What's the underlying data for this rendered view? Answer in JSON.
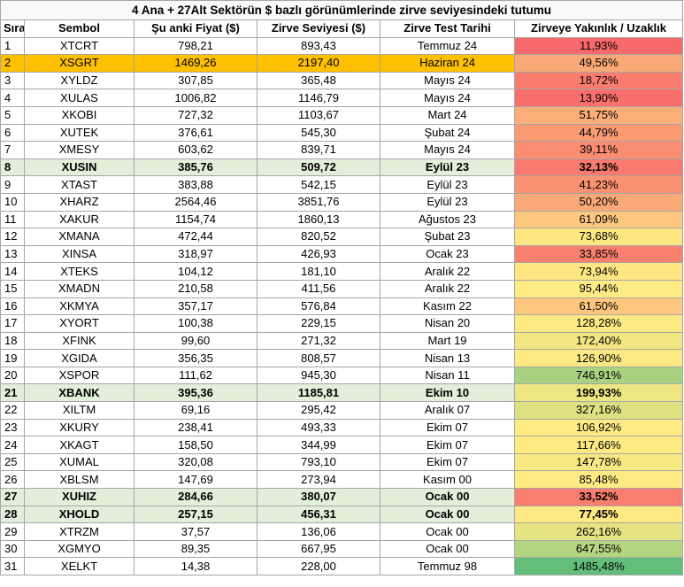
{
  "title": "4 Ana + 27Alt Sektörün $ bazlı görünümlerinde zirve seviyesindeki tutumu",
  "headers": [
    "Sıra",
    "Sembol",
    "Şu anki Fiyat ($)",
    "Zirve Seviyesi ($)",
    "Zirve Test Tarihi",
    "Zirveye Yakınlık /  Uzaklık"
  ],
  "rows": [
    {
      "idx": "1",
      "sym": "XTCRT",
      "price": "798,21",
      "peak": "893,43",
      "date": "Temmuz 24",
      "pct": "11,93%",
      "color": "#f8696b",
      "hl": ""
    },
    {
      "idx": "2",
      "sym": "XSGRT",
      "price": "1469,26",
      "peak": "2197,40",
      "date": "Haziran 24",
      "pct": "49,56%",
      "color": "#fba877",
      "hl": "orange"
    },
    {
      "idx": "3",
      "sym": "XYLDZ",
      "price": "307,85",
      "peak": "365,48",
      "date": "Mayıs 24",
      "pct": "18,72%",
      "color": "#f97c6e",
      "hl": ""
    },
    {
      "idx": "4",
      "sym": "XULAS",
      "price": "1006,82",
      "peak": "1146,79",
      "date": "Mayıs 24",
      "pct": "13,90%",
      "color": "#f86f6c",
      "hl": ""
    },
    {
      "idx": "5",
      "sym": "XKOBI",
      "price": "727,32",
      "peak": "1103,67",
      "date": "Mart 24",
      "pct": "51,75%",
      "color": "#fbae78",
      "hl": ""
    },
    {
      "idx": "6",
      "sym": "XUTEK",
      "price": "376,61",
      "peak": "545,30",
      "date": "Şubat 24",
      "pct": "44,79%",
      "color": "#fa9b74",
      "hl": ""
    },
    {
      "idx": "7",
      "sym": "XMESY",
      "price": "603,62",
      "peak": "839,71",
      "date": "Mayıs 24",
      "pct": "39,11%",
      "color": "#fa8c71",
      "hl": ""
    },
    {
      "idx": "8",
      "sym": "XUSIN",
      "price": "385,76",
      "peak": "509,72",
      "date": "Eylül 23",
      "pct": "32,13%",
      "color": "#f97a6e",
      "hl": "green"
    },
    {
      "idx": "9",
      "sym": "XTAST",
      "price": "383,88",
      "peak": "542,15",
      "date": "Eylül 23",
      "pct": "41,23%",
      "color": "#fa9272",
      "hl": ""
    },
    {
      "idx": "10",
      "sym": "XHARZ",
      "price": "2564,46",
      "peak": "3851,76",
      "date": "Eylül 23",
      "pct": "50,20%",
      "color": "#fbaa77",
      "hl": ""
    },
    {
      "idx": "11",
      "sym": "XAKUR",
      "price": "1154,74",
      "peak": "1860,13",
      "date": "Ağustos 23",
      "pct": "61,09%",
      "color": "#fdc77d",
      "hl": ""
    },
    {
      "idx": "12",
      "sym": "XMANA",
      "price": "472,44",
      "peak": "820,52",
      "date": "Şubat 23",
      "pct": "73,68%",
      "color": "#fee782",
      "hl": ""
    },
    {
      "idx": "13",
      "sym": "XINSA",
      "price": "318,97",
      "peak": "426,93",
      "date": "Ocak 23",
      "pct": "33,85%",
      "color": "#f97f6f",
      "hl": ""
    },
    {
      "idx": "14",
      "sym": "XTEKS",
      "price": "104,12",
      "peak": "181,10",
      "date": "Aralık 22",
      "pct": "73,94%",
      "color": "#fee782",
      "hl": ""
    },
    {
      "idx": "15",
      "sym": "XMADN",
      "price": "210,58",
      "peak": "411,56",
      "date": "Aralık 22",
      "pct": "95,44%",
      "color": "#ffeb84",
      "hl": ""
    },
    {
      "idx": "16",
      "sym": "XKMYA",
      "price": "357,17",
      "peak": "576,84",
      "date": "Kasım 22",
      "pct": "61,50%",
      "color": "#fdc87d",
      "hl": ""
    },
    {
      "idx": "17",
      "sym": "XYORT",
      "price": "100,38",
      "peak": "229,15",
      "date": "Nisan 20",
      "pct": "128,28%",
      "color": "#fce983",
      "hl": ""
    },
    {
      "idx": "18",
      "sym": "XFINK",
      "price": "99,60",
      "peak": "271,32",
      "date": "Mart 19",
      "pct": "172,40%",
      "color": "#f2e683",
      "hl": ""
    },
    {
      "idx": "19",
      "sym": "XGIDA",
      "price": "356,35",
      "peak": "808,57",
      "date": "Nisan 13",
      "pct": "126,90%",
      "color": "#fce983",
      "hl": ""
    },
    {
      "idx": "20",
      "sym": "XSPOR",
      "price": "111,62",
      "peak": "945,30",
      "date": "Nisan 11",
      "pct": "746,91%",
      "color": "#a8d27f",
      "hl": ""
    },
    {
      "idx": "21",
      "sym": "XBANK",
      "price": "395,36",
      "peak": "1185,81",
      "date": "Ekim 10",
      "pct": "199,93%",
      "color": "#eee683",
      "hl": "green"
    },
    {
      "idx": "22",
      "sym": "XILTM",
      "price": "69,16",
      "peak": "295,42",
      "date": "Aralık 07",
      "pct": "327,16%",
      "color": "#dde181",
      "hl": ""
    },
    {
      "idx": "23",
      "sym": "XKURY",
      "price": "238,41",
      "peak": "493,33",
      "date": "Ekim 07",
      "pct": "106,92%",
      "color": "#ffeb84",
      "hl": ""
    },
    {
      "idx": "24",
      "sym": "XKAGT",
      "price": "158,50",
      "peak": "344,99",
      "date": "Ekim 07",
      "pct": "117,66%",
      "color": "#fdea83",
      "hl": ""
    },
    {
      "idx": "25",
      "sym": "XUMAL",
      "price": "320,08",
      "peak": "793,10",
      "date": "Ekim 07",
      "pct": "147,78%",
      "color": "#f7e883",
      "hl": ""
    },
    {
      "idx": "26",
      "sym": "XBLSM",
      "price": "147,69",
      "peak": "273,94",
      "date": "Kasım 00",
      "pct": "85,48%",
      "color": "#ffea84",
      "hl": ""
    },
    {
      "idx": "27",
      "sym": "XUHIZ",
      "price": "284,66",
      "peak": "380,07",
      "date": "Ocak 00",
      "pct": "33,52%",
      "color": "#f97e6f",
      "hl": "green"
    },
    {
      "idx": "28",
      "sym": "XHOLD",
      "price": "257,15",
      "peak": "456,31",
      "date": "Ocak 00",
      "pct": "77,45%",
      "color": "#fee983",
      "hl": "green"
    },
    {
      "idx": "29",
      "sym": "XTRZM",
      "price": "37,57",
      "peak": "136,06",
      "date": "Ocak 00",
      "pct": "262,16%",
      "color": "#e5e382",
      "hl": ""
    },
    {
      "idx": "30",
      "sym": "XGMYO",
      "price": "89,35",
      "peak": "667,95",
      "date": "Ocak 00",
      "pct": "647,55%",
      "color": "#b4d57f",
      "hl": ""
    },
    {
      "idx": "31",
      "sym": "XELKT",
      "price": "14,38",
      "peak": "228,00",
      "date": "Temmuz 98",
      "pct": "1485,48%",
      "color": "#63be7b",
      "hl": ""
    }
  ]
}
